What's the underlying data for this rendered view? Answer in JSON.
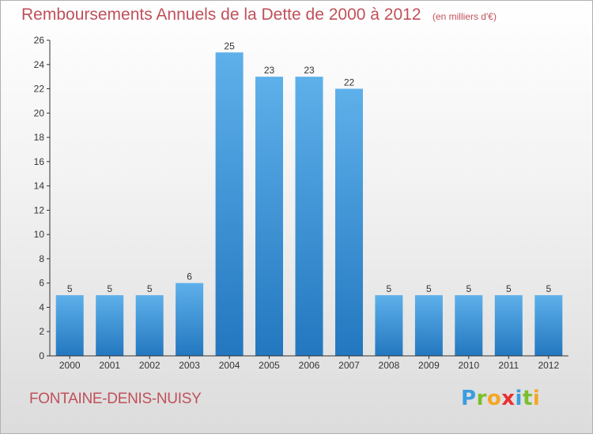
{
  "header": {
    "title": "Remboursements Annuels de la Dette de 2000 à 2012",
    "unit": "(en milliers d'€)"
  },
  "footer": {
    "commune": "FONTAINE-DENIS-NUISY",
    "brand_letters": [
      "P",
      "r",
      "o",
      "x",
      "i",
      "t",
      "i"
    ],
    "brand_colors": [
      "#3b9de0",
      "#7bbf2a",
      "#f5a623",
      "#e8302f",
      "#3b9de0",
      "#7bbf2a",
      "#f5a623"
    ]
  },
  "colors": {
    "bar": "#3d93d8",
    "bar_light": "#5eb0ea",
    "bar_dark": "#2377bf",
    "title": "#c0505a",
    "axis": "#333333"
  },
  "chart_data": {
    "type": "bar",
    "categories": [
      "2000",
      "2001",
      "2002",
      "2003",
      "2004",
      "2005",
      "2006",
      "2007",
      "2008",
      "2009",
      "2010",
      "2011",
      "2012"
    ],
    "values": [
      5,
      5,
      5,
      6,
      25,
      23,
      23,
      22,
      5,
      5,
      5,
      5,
      5
    ],
    "data_labels": [
      "5",
      "5",
      "5",
      "6",
      "25",
      "23",
      "23",
      "22",
      "5",
      "5",
      "5",
      "5",
      "5"
    ],
    "yticks": [
      0,
      2,
      4,
      6,
      8,
      10,
      12,
      14,
      16,
      18,
      20,
      22,
      24,
      26
    ],
    "ylim": [
      0,
      26
    ],
    "grid": false,
    "legend": "none"
  }
}
